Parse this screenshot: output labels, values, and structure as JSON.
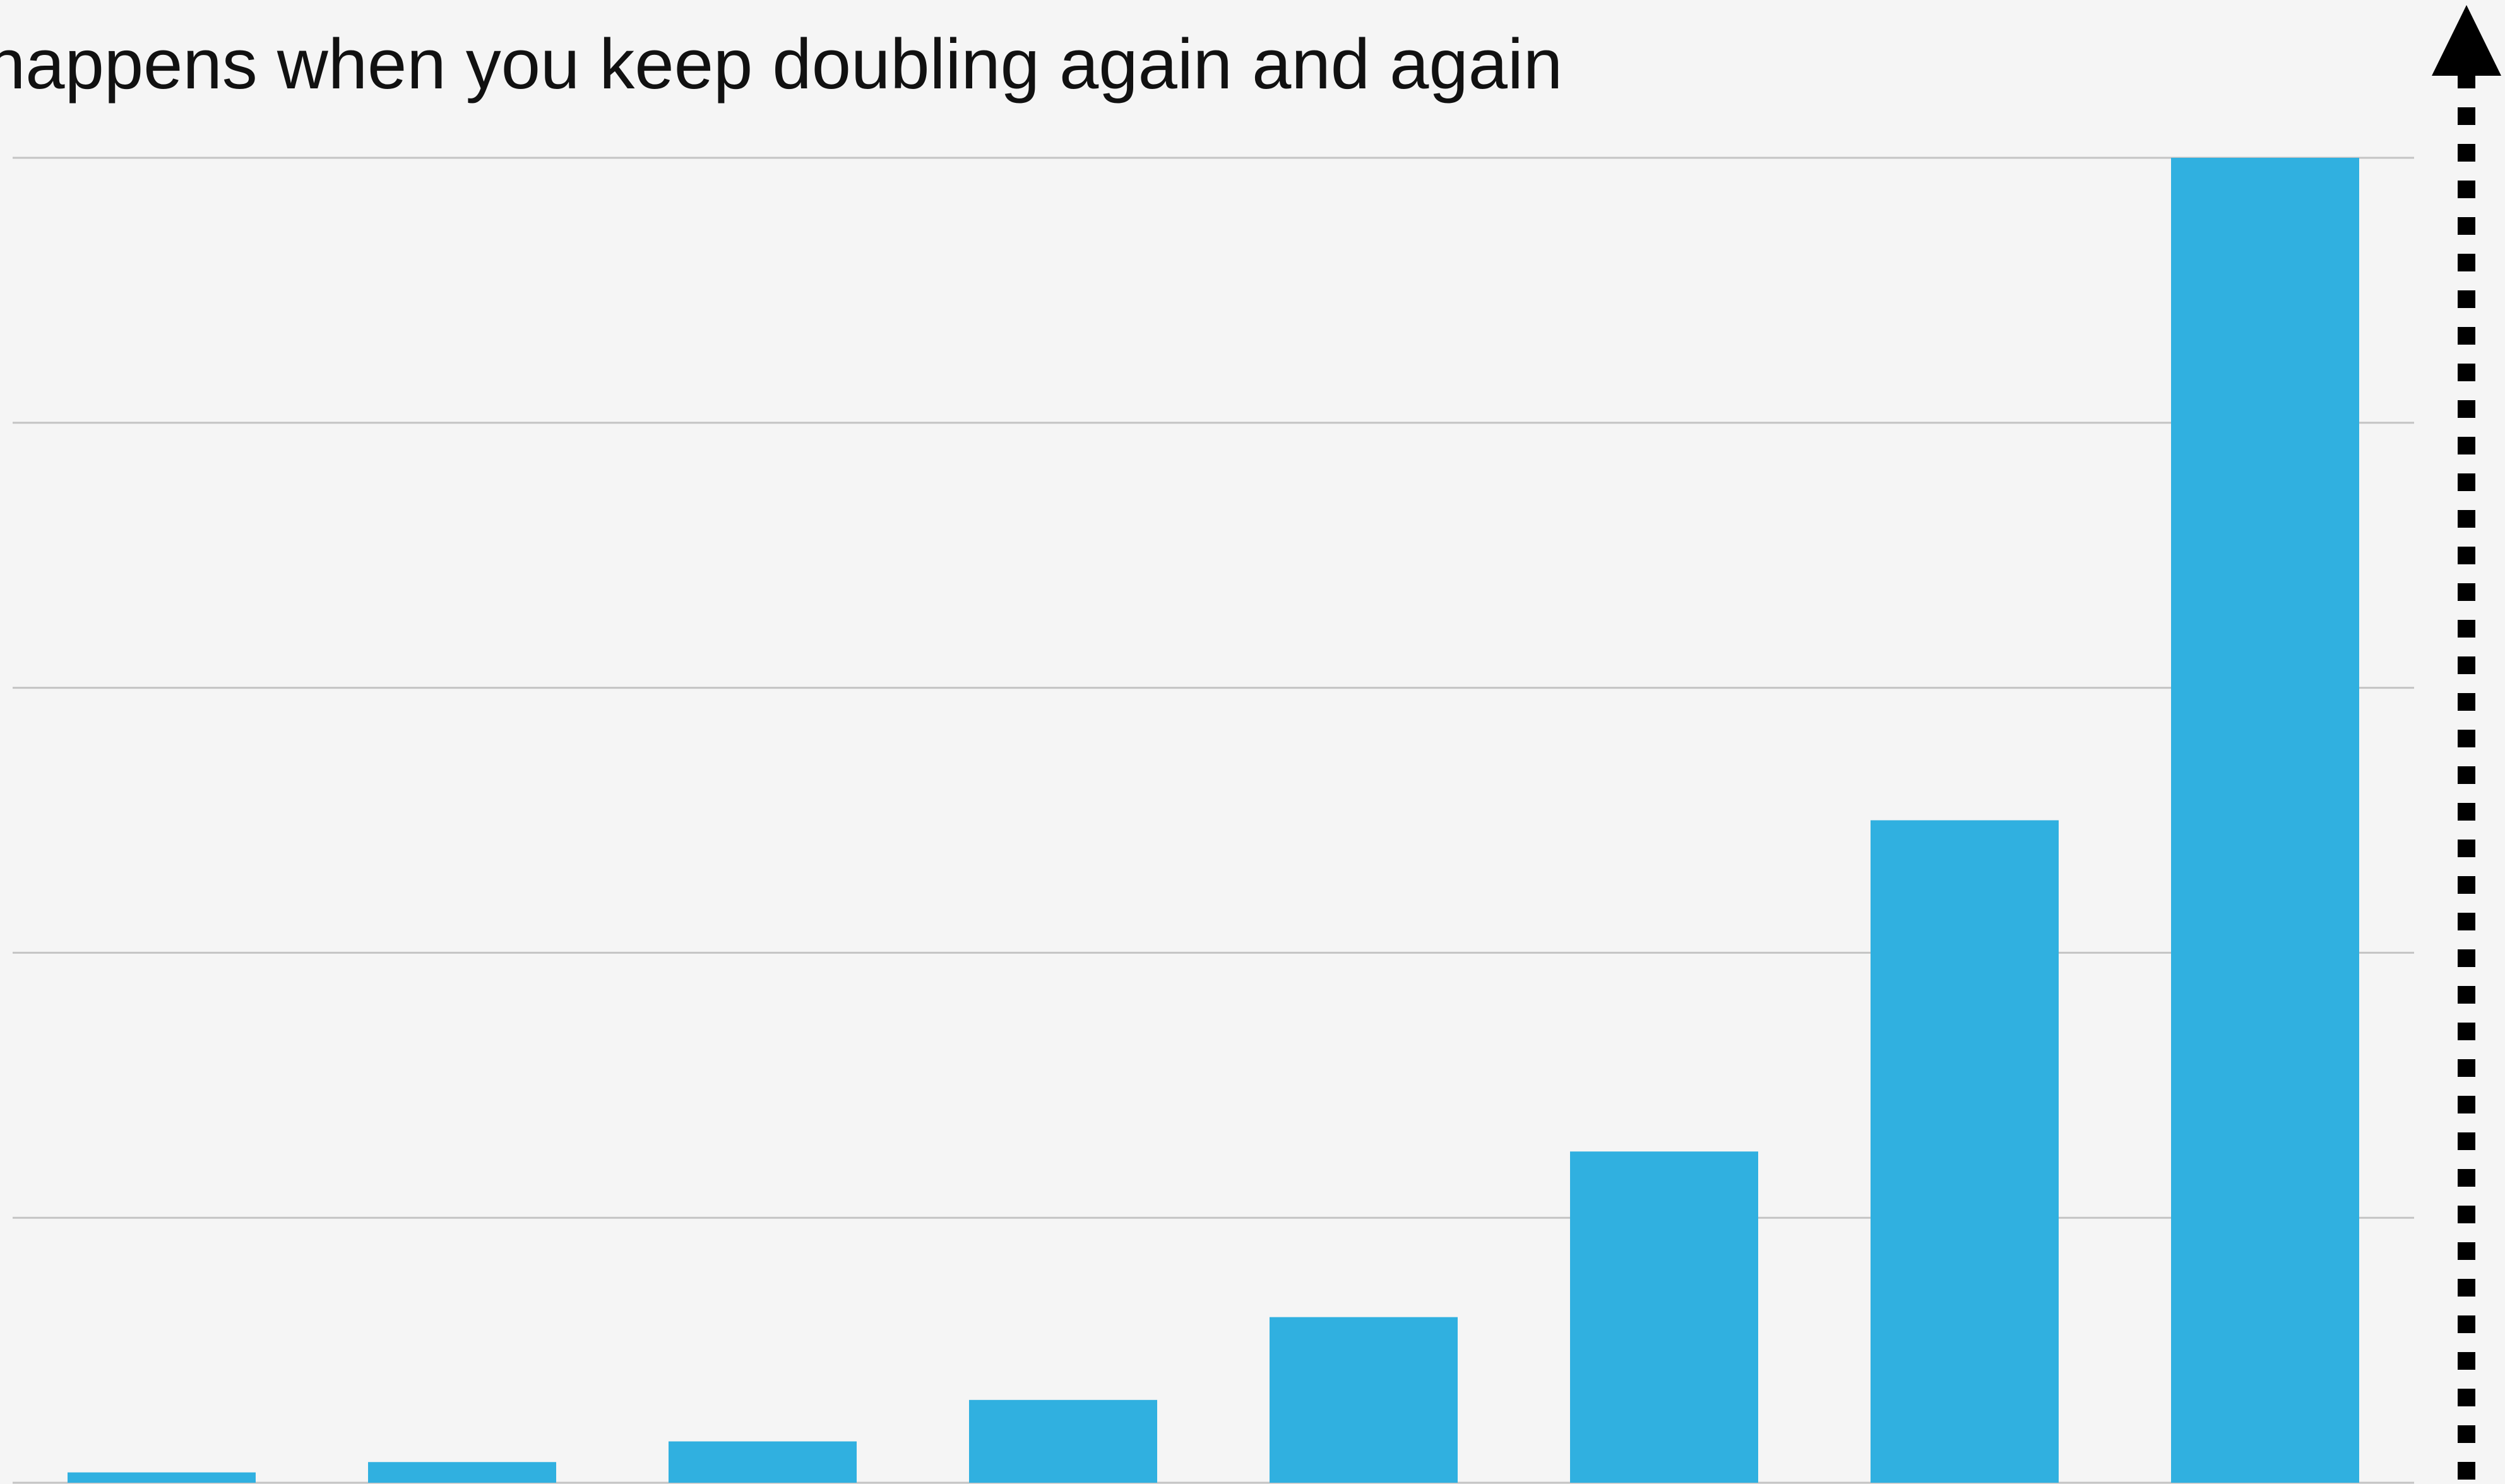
{
  "chart_data": {
    "type": "bar",
    "title": "happens when you keep doubling again and again",
    "categories": [
      null,
      null,
      null,
      null,
      null,
      null,
      null,
      null
    ],
    "values": [
      0.039,
      0.078,
      0.156,
      0.3125,
      0.625,
      1.25,
      2.5,
      5
    ],
    "color": "#30b0e0",
    "ylim": [
      0,
      5
    ],
    "yticks": [
      0,
      1,
      2,
      3,
      4,
      5
    ],
    "grid": true
  }
}
